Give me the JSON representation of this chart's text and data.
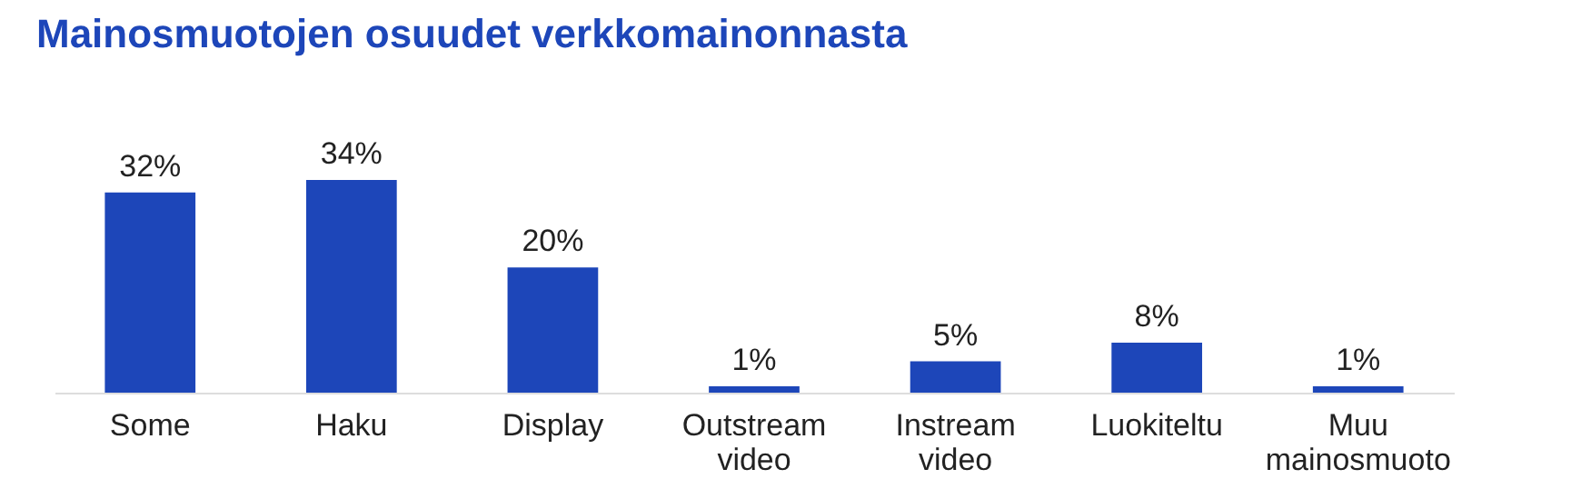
{
  "chart_data": {
    "type": "bar",
    "title": "Mainosmuotojen osuudet verkkomainonnasta",
    "categories": [
      "Some",
      "Haku",
      "Display",
      "Outstream video",
      "Instream video",
      "Luokiteltu",
      "Muu mainosmuoto"
    ],
    "values": [
      32,
      34,
      20,
      1,
      5,
      8,
      1
    ],
    "value_labels": [
      "32%",
      "34%",
      "20%",
      "1%",
      "5%",
      "8%",
      "1%"
    ],
    "color": "#1d46b9",
    "grid": false
  }
}
